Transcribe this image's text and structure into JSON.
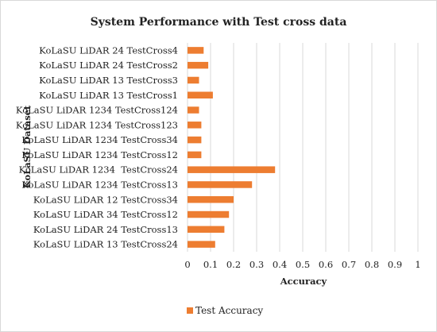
{
  "chart_data": {
    "type": "bar",
    "orientation": "horizontal",
    "title": "System Performance with Test cross data",
    "xlabel": "Accuracy",
    "ylabel": "KoLaSU Dataset",
    "xlim": [
      0,
      1
    ],
    "xticks": [
      "0",
      "0.1",
      "0.2",
      "0.3",
      "0.4",
      "0.5",
      "0.6",
      "0.7",
      "0.8",
      "0.9",
      "1"
    ],
    "grid": "vertical",
    "legend_position": "bottom",
    "categories": [
      "KoLaSU LiDAR 24 TestCross4",
      "KoLaSU LiDAR 24 TestCross2",
      "KoLaSU LiDAR 13 TestCross3",
      "KoLaSU LiDAR 13 TestCross1",
      "KoLaSU LiDAR 1234 TestCross124",
      "KoLaSU LiDAR 1234 TestCross123",
      "KoLaSU LiDAR 1234 TestCross34",
      "KoLaSU LiDAR 1234 TestCross12",
      "KoLaSU LiDAR 1234  TestCross24",
      "KoLaSU LiDAR 1234 TestCross13",
      "KoLaSU LiDAR 12 TestCross34",
      "KoLaSU LiDAR 34 TestCross12",
      "KoLaSU LiDAR 24 TestCross13",
      "KoLaSU LiDAR 13 TestCross24"
    ],
    "series": [
      {
        "name": "Test Accuracy",
        "color": "#ed7d31",
        "values": [
          0.07,
          0.09,
          0.05,
          0.11,
          0.05,
          0.06,
          0.06,
          0.06,
          0.38,
          0.28,
          0.2,
          0.18,
          0.16,
          0.12
        ]
      }
    ]
  }
}
